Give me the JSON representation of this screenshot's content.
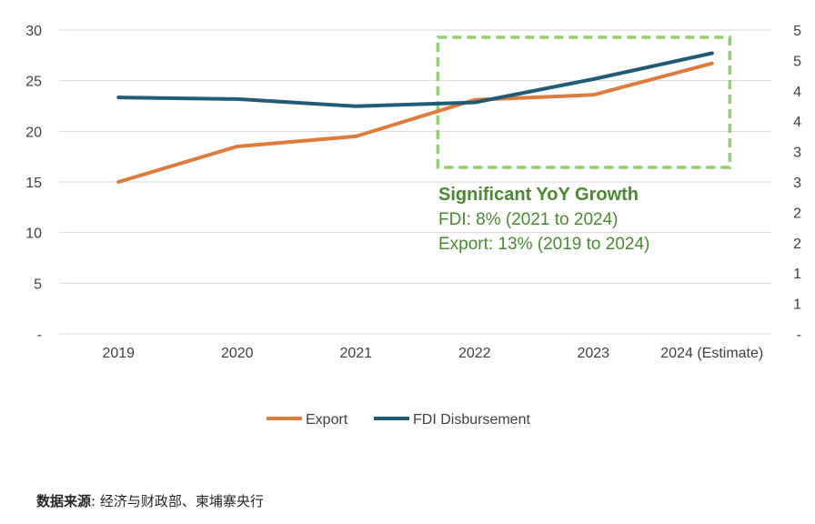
{
  "chart_data": {
    "type": "line",
    "categories": [
      "2019",
      "2020",
      "2021",
      "2022",
      "2023",
      "2024 (Estimate)"
    ],
    "series": [
      {
        "name": "Export",
        "axis": "left",
        "color": "#e07b39",
        "values": [
          15.0,
          18.5,
          19.5,
          23.1,
          23.6,
          26.7
        ]
      },
      {
        "name": "FDI Disbursement",
        "axis": "right",
        "color": "#1f5c78",
        "values": [
          4.28,
          4.25,
          4.12,
          4.19,
          4.61,
          5.08
        ]
      }
    ],
    "y_left": {
      "ticks": [
        "-",
        "5",
        "10",
        "15",
        "20",
        "25",
        "30"
      ],
      "ylim": [
        0,
        30
      ]
    },
    "y_right": {
      "ticks": [
        "-",
        "1",
        "1",
        "2",
        "2",
        "3",
        "3",
        "4",
        "4",
        "5",
        "5"
      ],
      "ylim": [
        0,
        5.5
      ]
    },
    "grid": "horizontal",
    "legend": {
      "position": "bottom",
      "entries": [
        "Export",
        "FDI Disbursement"
      ]
    },
    "annotation": {
      "title": "Significant YoY Growth",
      "lines": [
        "FDI: 8% (2021 to 2024)",
        "Export: 13% (2019 to 2024)"
      ],
      "color": "#4a8a2f",
      "box_color": "#8fd16a",
      "highlight_from": "2022",
      "highlight_to": "2024 (Estimate)"
    }
  },
  "source": {
    "label": "数据来源",
    "text": ": 经济与财政部、柬埔寨央行"
  }
}
